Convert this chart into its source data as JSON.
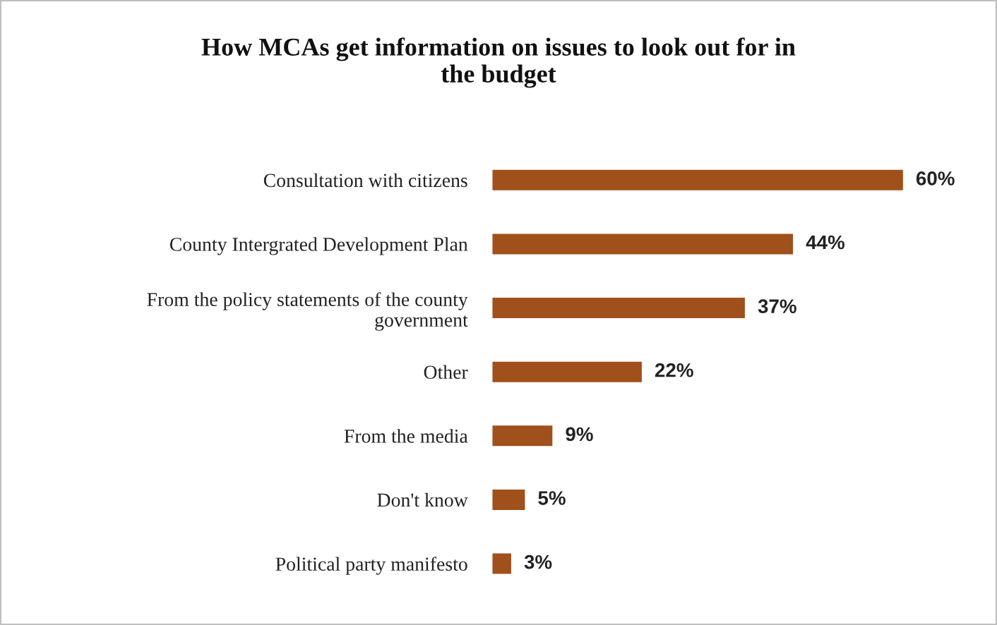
{
  "chart_data": {
    "type": "bar",
    "orientation": "horizontal",
    "title": "How MCAs get information on issues to look out for in\nthe budget",
    "categories": [
      "Consultation with citizens",
      "County Intergrated Development Plan",
      "From the policy statements of the county\ngovernment",
      "Other",
      "From the media",
      "Don't know",
      "Political party manifesto"
    ],
    "values": [
      60,
      44,
      37,
      22,
      9,
      5,
      3
    ],
    "color": "#a0501a",
    "value_labels": [
      "60%",
      "44%",
      "37%",
      "22%",
      "9%",
      "5%",
      "3%"
    ],
    "grid": false,
    "legend": false
  }
}
